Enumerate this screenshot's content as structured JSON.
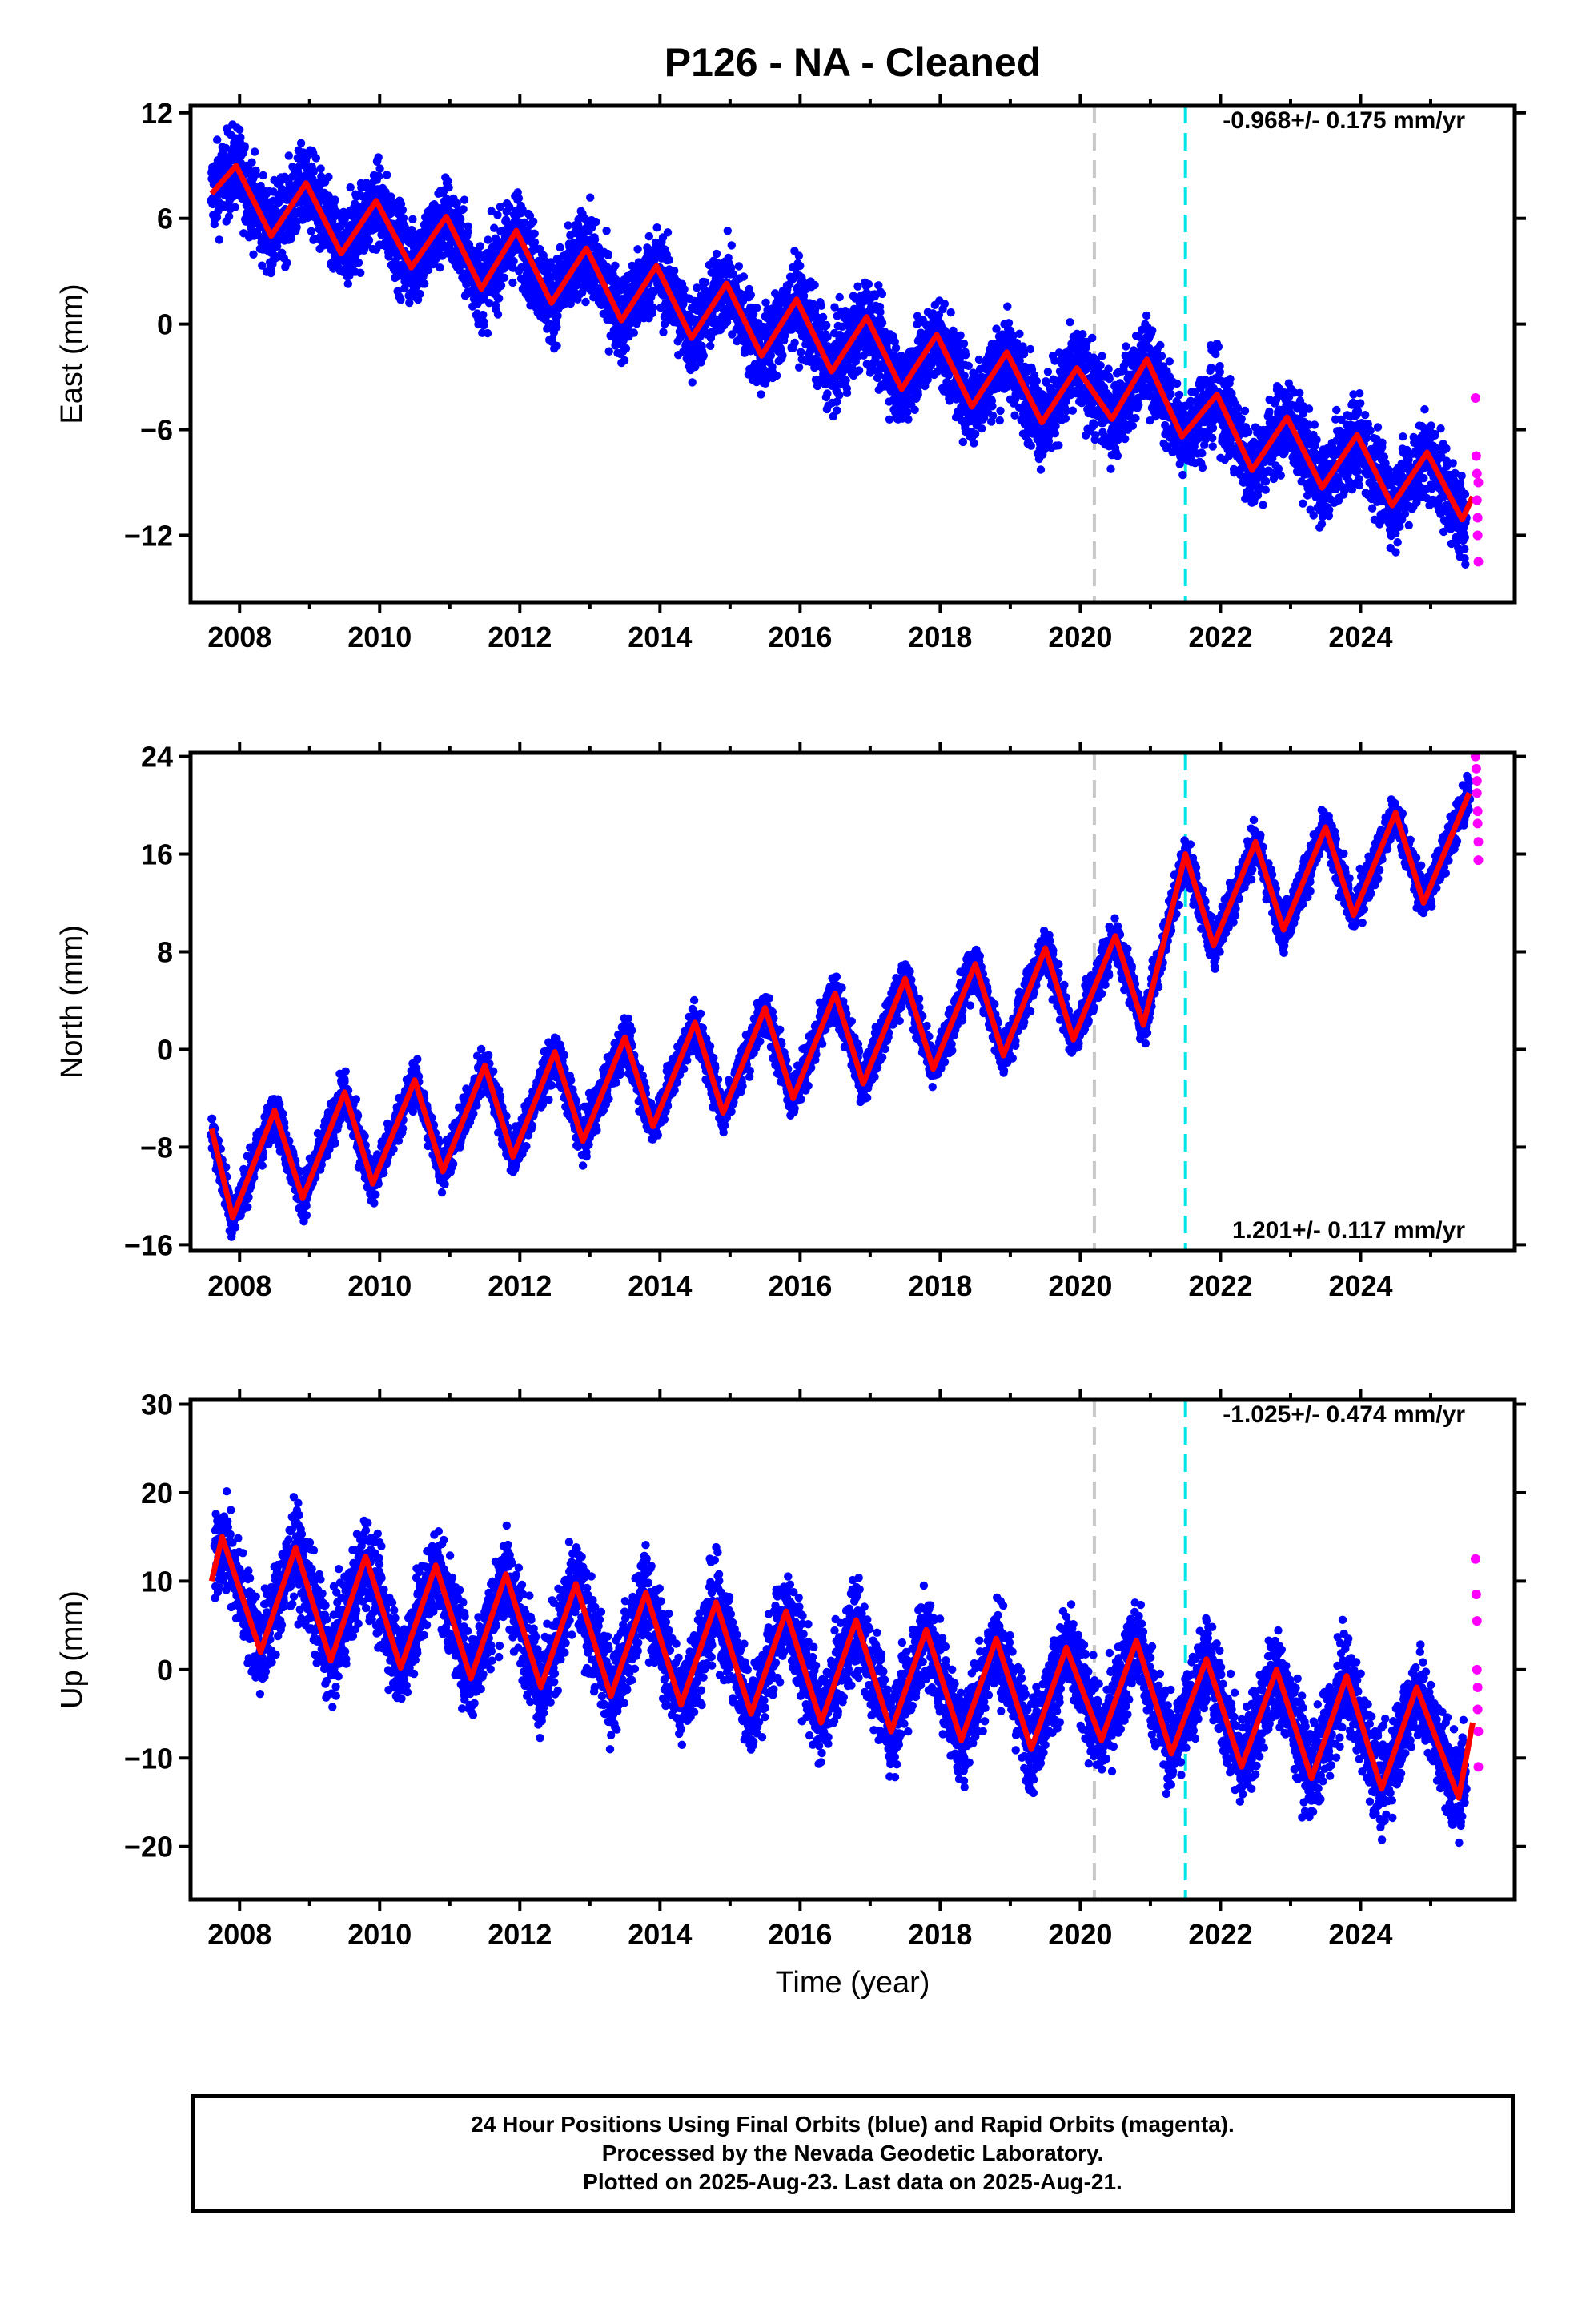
{
  "title": "P126  - NA - Cleaned",
  "footer": {
    "line1": "24 Hour Positions Using Final Orbits (blue) and Rapid Orbits (magenta).",
    "line2": "Processed by the Nevada Geodetic Laboratory.",
    "line3": "Plotted on 2025-Aug-23. Last data on 2025-Aug-21."
  },
  "colors": {
    "final_points": "#0000ff",
    "rapid_points": "#ff00ff",
    "model_fit": "#ff0000",
    "gray_event_line": "#c8c8c8",
    "cyan_event_line": "#00e5e5"
  },
  "chart_data": [
    {
      "type": "scatter",
      "ylabel": "East (mm)",
      "xlabel": "",
      "xlim": [
        2007.3,
        2026.2
      ],
      "ylim": [
        -15.8,
        12.4
      ],
      "yticks": [
        -12,
        -6,
        0,
        6,
        12
      ],
      "xticks": [
        2008,
        2010,
        2012,
        2014,
        2016,
        2018,
        2020,
        2022,
        2024
      ],
      "rate_label": "-0.968+/- 0.175 mm/yr",
      "rate_label_position": "top-right",
      "event_lines": [
        {
          "x": 2020.2,
          "color": "gray"
        },
        {
          "x": 2021.5,
          "color": "cyan"
        }
      ],
      "series": [
        {
          "role": "final_orbits",
          "x": [
            2007.6,
            2008.0,
            2008.5,
            2008.9,
            2009.4,
            2009.8,
            2010.4,
            2010.9,
            2011.4,
            2011.8,
            2012.3,
            2012.8,
            2013.4,
            2013.9,
            2014.4,
            2014.9,
            2015.4,
            2015.9,
            2016.4,
            2016.9,
            2017.4,
            2017.9,
            2018.4,
            2018.9,
            2019.4,
            2019.9,
            2020.3,
            2020.9,
            2021.4,
            2021.9,
            2022.4,
            2022.9,
            2023.4,
            2023.9,
            2024.4,
            2024.9,
            2025.5
          ],
          "values": [
            7.0,
            8.5,
            5.5,
            7.5,
            4.2,
            6.8,
            3.0,
            5.8,
            2.5,
            5.0,
            1.3,
            4.0,
            0.6,
            3.0,
            -0.6,
            2.0,
            -1.6,
            1.2,
            -2.5,
            0.5,
            -3.6,
            -0.5,
            -4.5,
            -1.6,
            -5.5,
            -2.5,
            -4.8,
            -2.2,
            -6.0,
            -4.0,
            -8.0,
            -5.5,
            -9.0,
            -6.5,
            -10.0,
            -7.5,
            -11.0
          ]
        },
        {
          "role": "model_fit",
          "x": [
            2007.6,
            2007.95,
            2008.45,
            2008.95,
            2009.45,
            2009.95,
            2010.45,
            2010.95,
            2011.45,
            2011.95,
            2012.45,
            2012.95,
            2013.45,
            2013.95,
            2014.45,
            2014.95,
            2015.45,
            2015.95,
            2016.45,
            2016.95,
            2017.45,
            2017.95,
            2018.45,
            2018.95,
            2019.45,
            2019.95,
            2020.45,
            2020.95,
            2021.45,
            2021.95,
            2022.45,
            2022.95,
            2023.45,
            2023.95,
            2024.45,
            2024.95,
            2025.45,
            2025.6
          ],
          "values": [
            7.4,
            9.0,
            5.0,
            8.0,
            4.0,
            7.0,
            3.2,
            6.1,
            2.0,
            5.3,
            1.2,
            4.3,
            0.2,
            3.3,
            -0.8,
            2.3,
            -1.8,
            1.4,
            -2.7,
            0.4,
            -3.7,
            -0.6,
            -4.7,
            -1.6,
            -5.6,
            -2.5,
            -5.4,
            -2.0,
            -6.4,
            -4.0,
            -8.3,
            -5.3,
            -9.3,
            -6.3,
            -10.3,
            -7.3,
            -11.1,
            -9.8
          ]
        },
        {
          "role": "rapid_orbits",
          "x": [
            2025.64,
            2025.65,
            2025.66,
            2025.66,
            2025.67,
            2025.67,
            2025.68,
            2025.68
          ],
          "values": [
            -4.2,
            -7.5,
            -8.5,
            -10.0,
            -11.0,
            -12.0,
            -13.5,
            -9.0
          ]
        }
      ]
    },
    {
      "type": "scatter",
      "ylabel": "North (mm)",
      "xlabel": "",
      "xlim": [
        2007.3,
        2026.2
      ],
      "ylim": [
        -16.5,
        24.3
      ],
      "yticks": [
        -16,
        -8,
        0,
        8,
        16,
        24
      ],
      "xticks": [
        2008,
        2010,
        2012,
        2014,
        2016,
        2018,
        2020,
        2022,
        2024
      ],
      "rate_label": "1.201+/- 0.117 mm/yr",
      "rate_label_position": "bottom-right",
      "event_lines": [
        {
          "x": 2020.2,
          "color": "gray"
        },
        {
          "x": 2021.5,
          "color": "cyan"
        }
      ],
      "series": [
        {
          "role": "final_orbits",
          "x": [
            2007.6,
            2007.85,
            2008.5,
            2008.85,
            2009.5,
            2009.85,
            2010.5,
            2010.85,
            2011.5,
            2011.85,
            2012.5,
            2012.85,
            2013.5,
            2013.85,
            2014.5,
            2014.85,
            2015.5,
            2015.85,
            2016.5,
            2016.85,
            2017.5,
            2017.85,
            2018.5,
            2018.85,
            2019.5,
            2019.85,
            2020.5,
            2020.85,
            2021.5,
            2021.85,
            2022.5,
            2022.85,
            2023.5,
            2023.85,
            2024.5,
            2024.85,
            2025.55
          ],
          "values": [
            -7.0,
            -13.5,
            -5.5,
            -12.0,
            -4.0,
            -10.8,
            -3.0,
            -9.8,
            -2.0,
            -8.5,
            -0.8,
            -7.3,
            0.5,
            -6.2,
            1.8,
            -5.0,
            2.8,
            -3.8,
            4.0,
            -2.7,
            5.3,
            -1.6,
            6.5,
            -0.6,
            7.8,
            0.8,
            9.0,
            2.0,
            15.5,
            8.6,
            16.5,
            9.8,
            17.8,
            10.8,
            19.0,
            11.8,
            20.5
          ]
        },
        {
          "role": "model_fit",
          "x": [
            2007.6,
            2007.9,
            2008.5,
            2008.9,
            2009.5,
            2009.9,
            2010.5,
            2010.9,
            2011.5,
            2011.9,
            2012.5,
            2012.9,
            2013.5,
            2013.9,
            2014.5,
            2014.9,
            2015.5,
            2015.9,
            2016.5,
            2016.9,
            2017.5,
            2017.9,
            2018.5,
            2018.9,
            2019.5,
            2019.9,
            2020.5,
            2020.9,
            2021.5,
            2021.9,
            2022.5,
            2022.9,
            2023.5,
            2023.9,
            2024.5,
            2024.9,
            2025.55
          ],
          "values": [
            -6.5,
            -13.8,
            -5.0,
            -12.2,
            -3.5,
            -11.0,
            -2.5,
            -10.0,
            -1.3,
            -8.8,
            -0.2,
            -7.5,
            1.0,
            -6.3,
            2.2,
            -5.2,
            3.4,
            -4.0,
            4.6,
            -2.8,
            5.8,
            -1.6,
            7.0,
            -0.5,
            8.3,
            0.8,
            9.3,
            2.0,
            16.0,
            8.5,
            17.0,
            9.8,
            18.2,
            11.0,
            19.4,
            12.0,
            21.0
          ]
        },
        {
          "role": "rapid_orbits",
          "x": [
            2025.64,
            2025.65,
            2025.66,
            2025.66,
            2025.67,
            2025.67,
            2025.68,
            2025.68
          ],
          "values": [
            24.0,
            23.0,
            22.0,
            21.0,
            19.5,
            18.5,
            17.0,
            15.5
          ]
        }
      ]
    },
    {
      "type": "scatter",
      "ylabel": "Up (mm)",
      "xlabel": "Time (year)",
      "xlim": [
        2007.3,
        2026.2
      ],
      "ylim": [
        -26.0,
        30.5
      ],
      "yticks": [
        -20,
        -10,
        0,
        10,
        20,
        30
      ],
      "xticks": [
        2008,
        2010,
        2012,
        2014,
        2016,
        2018,
        2020,
        2022,
        2024
      ],
      "rate_label": "-1.025+/- 0.474 mm/yr",
      "rate_label_position": "top-right",
      "event_lines": [
        {
          "x": 2020.2,
          "color": "gray"
        },
        {
          "x": 2021.5,
          "color": "cyan"
        }
      ],
      "series": [
        {
          "role": "final_orbits",
          "x": [
            2007.65,
            2008.25,
            2008.75,
            2009.3,
            2009.75,
            2010.3,
            2010.75,
            2011.3,
            2011.75,
            2012.3,
            2012.75,
            2013.3,
            2013.75,
            2014.3,
            2014.75,
            2015.3,
            2015.75,
            2016.3,
            2016.75,
            2017.3,
            2017.75,
            2018.3,
            2018.75,
            2019.3,
            2019.75,
            2020.3,
            2020.8,
            2021.3,
            2021.8,
            2022.3,
            2022.8,
            2023.3,
            2023.8,
            2024.3,
            2024.8,
            2025.5
          ],
          "values": [
            14.0,
            0.0,
            13.0,
            1.0,
            12.0,
            0.0,
            11.5,
            -1.0,
            10.0,
            -2.0,
            9.0,
            -3.0,
            8.5,
            -4.0,
            7.5,
            -5.0,
            6.5,
            -6.0,
            5.0,
            -7.0,
            4.0,
            -8.0,
            3.5,
            -9.0,
            2.5,
            -8.0,
            3.0,
            -9.0,
            1.0,
            -11.0,
            0.0,
            -12.0,
            -1.0,
            -13.0,
            -2.0,
            -13.5
          ]
        },
        {
          "role": "model_fit",
          "x": [
            2007.6,
            2007.75,
            2008.3,
            2008.8,
            2009.3,
            2009.8,
            2010.3,
            2010.8,
            2011.3,
            2011.8,
            2012.3,
            2012.8,
            2013.3,
            2013.8,
            2014.3,
            2014.8,
            2015.3,
            2015.8,
            2016.3,
            2016.8,
            2017.3,
            2017.8,
            2018.3,
            2018.8,
            2019.3,
            2019.8,
            2020.3,
            2020.8,
            2021.3,
            2021.8,
            2022.3,
            2022.8,
            2023.3,
            2023.8,
            2024.3,
            2024.8,
            2025.4,
            2025.6
          ],
          "values": [
            10.0,
            15.0,
            2.0,
            13.8,
            1.0,
            12.8,
            0.2,
            11.8,
            -1.0,
            10.8,
            -2.0,
            9.7,
            -3.0,
            8.7,
            -4.0,
            7.6,
            -5.0,
            6.6,
            -6.0,
            5.6,
            -7.0,
            4.5,
            -8.0,
            3.5,
            -9.0,
            2.5,
            -8.0,
            3.3,
            -9.5,
            1.2,
            -11.0,
            0.0,
            -12.3,
            -0.7,
            -13.5,
            -2.0,
            -14.5,
            -6.0
          ]
        },
        {
          "role": "rapid_orbits",
          "x": [
            2025.64,
            2025.65,
            2025.66,
            2025.66,
            2025.67,
            2025.67,
            2025.68,
            2025.68
          ],
          "values": [
            12.5,
            8.5,
            5.5,
            0.0,
            -2.0,
            -4.5,
            -7.0,
            -11.0
          ]
        }
      ]
    }
  ]
}
